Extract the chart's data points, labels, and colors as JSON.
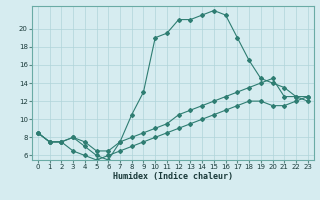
{
  "xlabel": "Humidex (Indice chaleur)",
  "bg_color": "#d6ecf0",
  "grid_color": "#b0d4da",
  "line_color": "#2e7d72",
  "xlim": [
    -0.5,
    23.5
  ],
  "ylim": [
    5.5,
    22.5
  ],
  "xticks": [
    0,
    1,
    2,
    3,
    4,
    5,
    6,
    7,
    8,
    9,
    10,
    11,
    12,
    13,
    14,
    15,
    16,
    17,
    18,
    19,
    20,
    21,
    22,
    23
  ],
  "yticks": [
    6,
    8,
    10,
    12,
    14,
    16,
    18,
    20
  ],
  "line1_x": [
    0,
    1,
    2,
    3,
    4,
    5,
    6,
    7,
    8,
    9,
    10,
    11,
    12,
    13,
    14,
    15,
    16,
    17,
    18,
    19,
    20,
    21,
    22,
    23
  ],
  "line1_y": [
    8.5,
    7.5,
    7.5,
    8.0,
    7.0,
    6.0,
    5.5,
    7.5,
    10.5,
    13.0,
    19.0,
    19.5,
    21.0,
    21.0,
    21.5,
    22.0,
    21.5,
    19.0,
    16.5,
    14.5,
    14.0,
    13.5,
    12.5,
    12.0
  ],
  "line2_x": [
    0,
    1,
    2,
    3,
    4,
    5,
    6,
    7,
    8,
    9,
    10,
    11,
    12,
    13,
    14,
    15,
    16,
    17,
    18,
    19,
    20,
    21,
    22,
    23
  ],
  "line2_y": [
    8.5,
    7.5,
    7.5,
    8.0,
    7.5,
    6.5,
    6.5,
    7.5,
    8.0,
    8.5,
    9.0,
    9.5,
    10.5,
    11.0,
    11.5,
    12.0,
    12.5,
    13.0,
    13.5,
    14.0,
    14.5,
    12.5,
    12.5,
    12.5
  ],
  "line3_x": [
    0,
    1,
    2,
    3,
    4,
    5,
    6,
    7,
    8,
    9,
    10,
    11,
    12,
    13,
    14,
    15,
    16,
    17,
    18,
    19,
    20,
    21,
    22,
    23
  ],
  "line3_y": [
    8.5,
    7.5,
    7.5,
    6.5,
    6.0,
    5.5,
    6.0,
    6.5,
    7.0,
    7.5,
    8.0,
    8.5,
    9.0,
    9.5,
    10.0,
    10.5,
    11.0,
    11.5,
    12.0,
    12.0,
    11.5,
    11.5,
    12.0,
    12.5
  ]
}
